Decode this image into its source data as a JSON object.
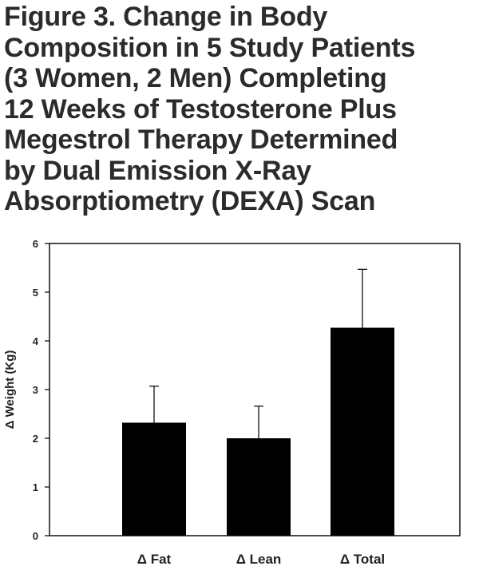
{
  "figure": {
    "title_lines": [
      "Figure 3. Change in Body",
      "Composition in 5 Study Patients",
      "(3 Women, 2 Men) Completing",
      "12 Weeks of Testosterone Plus",
      "Megestrol Therapy Determined",
      "by Dual Emission X-Ray",
      "Absorptiometry (DEXA) Scan"
    ]
  },
  "chart_data": {
    "type": "bar",
    "title": "Figure 3. Change in Body Composition in 5 Study Patients (3 Women, 2 Men) Completing 12 Weeks of Testosterone Plus Megestrol Therapy Determined by Dual Emission X-Ray Absorptiometry (DEXA) Scan",
    "xlabel": "",
    "ylabel": "Δ Weight (Kg)",
    "categories": [
      "Δ Fat",
      "Δ Lean",
      "Δ Total"
    ],
    "values": [
      2.32,
      2.0,
      4.27
    ],
    "error_upper": [
      0.75,
      0.66,
      1.2
    ],
    "ylim": [
      0,
      6
    ],
    "yticks": [
      0,
      1,
      2,
      3,
      4,
      5,
      6
    ],
    "bar_color": "#000000",
    "grid": false,
    "legend": "none"
  }
}
